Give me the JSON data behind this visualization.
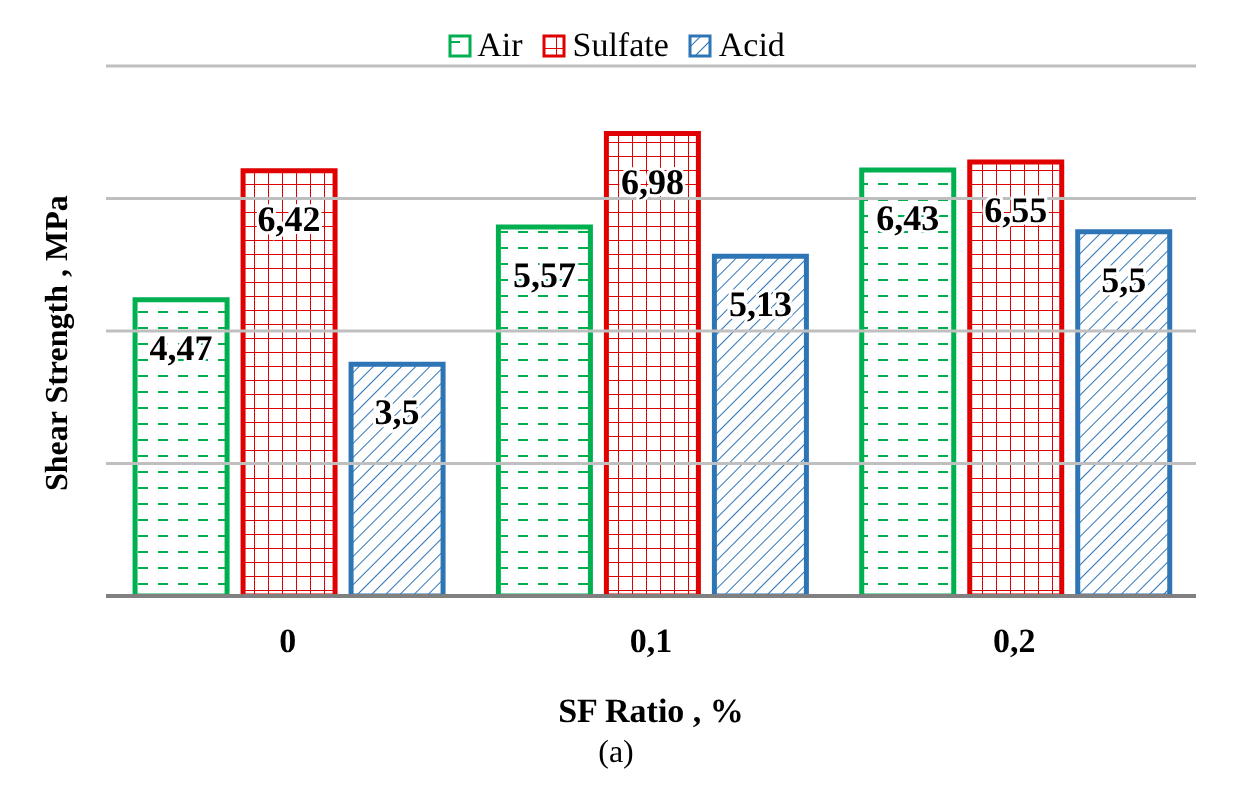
{
  "chart_data": {
    "type": "bar",
    "xlabel": "SF Ratio , %",
    "ylabel": "Shear Strength , MPa",
    "categories": [
      "0",
      "0,1",
      "0,2"
    ],
    "series": [
      {
        "name": "Air",
        "color": "#00b050",
        "values": [
          4.47,
          5.57,
          6.43
        ],
        "value_labels": [
          "4,47",
          "5,57",
          "6,43"
        ]
      },
      {
        "name": "Sulfate",
        "color": "#e00000",
        "values": [
          6.42,
          6.98,
          6.55
        ],
        "value_labels": [
          "6,42",
          "6,98",
          "6,55"
        ]
      },
      {
        "name": "Acid",
        "color": "#2e75b6",
        "values": [
          3.5,
          5.13,
          5.5
        ],
        "value_labels": [
          "3,5",
          "5,13",
          "5,5"
        ]
      }
    ],
    "ylim": [
      0,
      8
    ],
    "yticks": [
      0,
      2,
      4,
      6,
      8
    ],
    "tick_labels": "x",
    "grid": "y",
    "legend": "top",
    "annotations": [
      "(a)"
    ]
  }
}
